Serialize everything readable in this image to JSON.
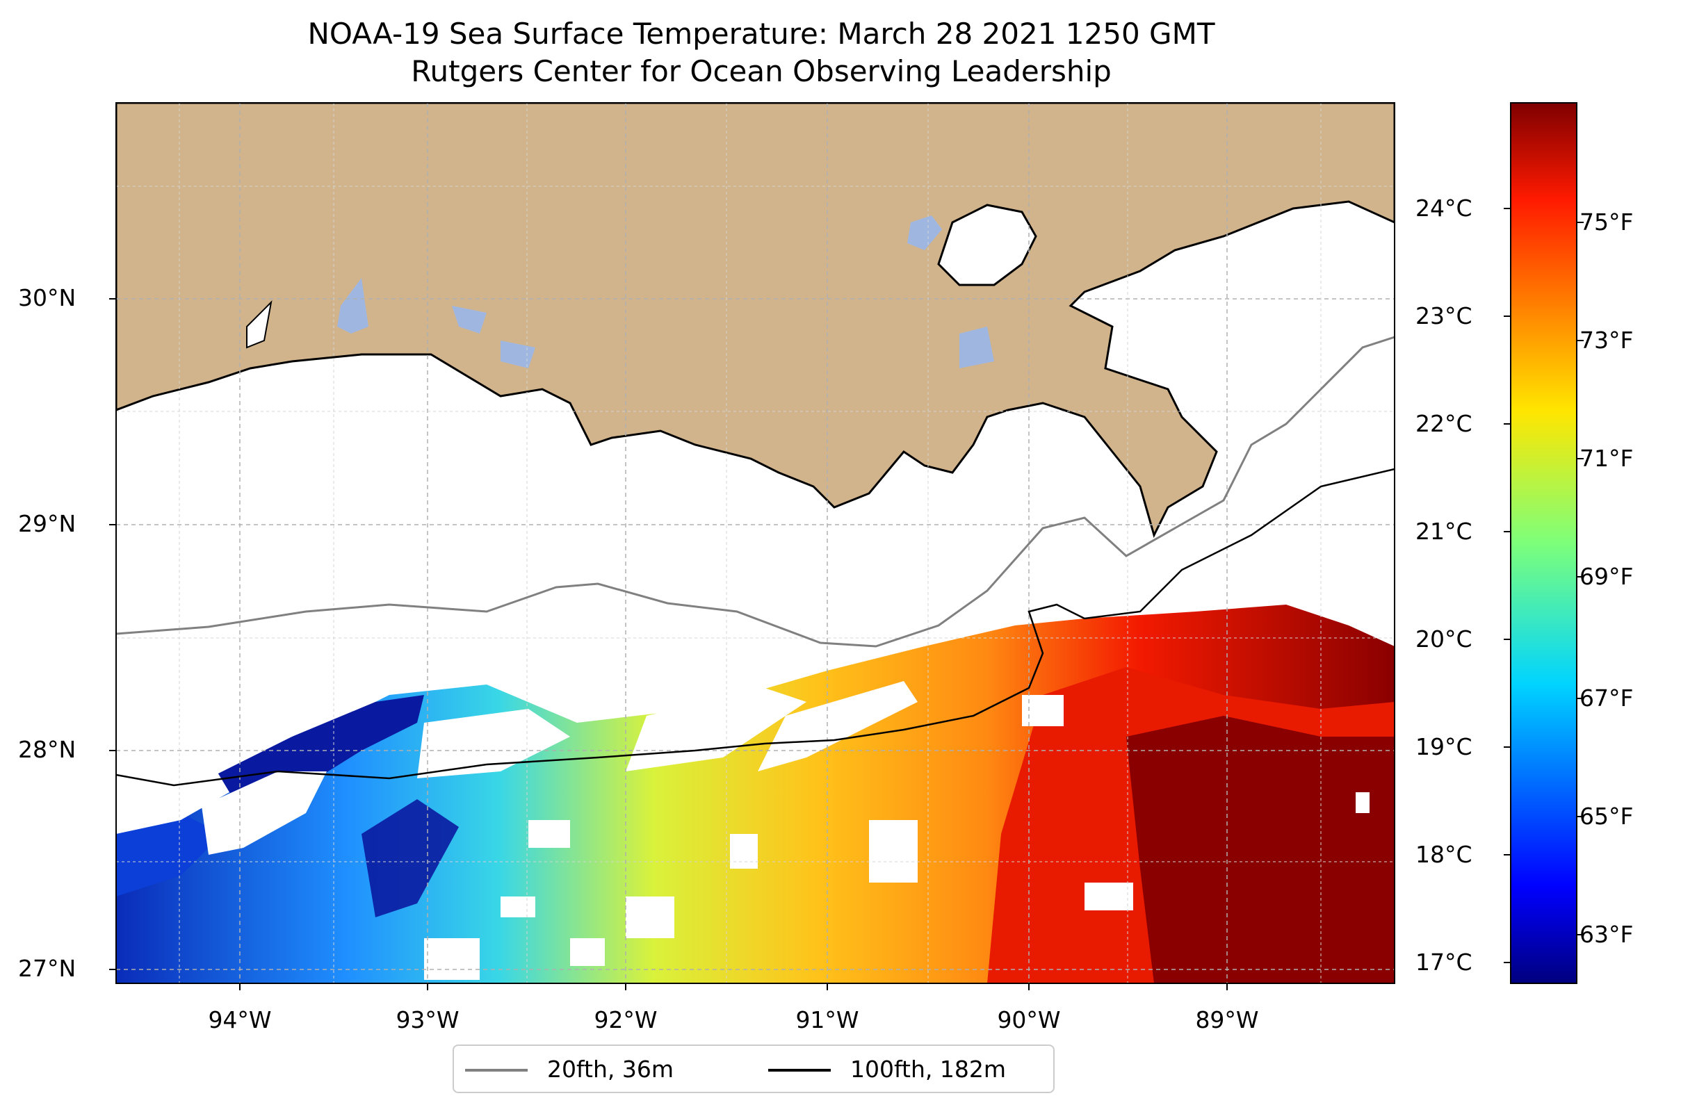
{
  "title": {
    "line1": "NOAA-19 Sea Surface Temperature: March 28 2021 1250 GMT",
    "line2": "Rutgers Center for Ocean Observing Leadership"
  },
  "map": {
    "lat_labels": [
      "30°N",
      "29°N",
      "28°N",
      "27°N"
    ],
    "lon_labels": [
      "94°W",
      "93°W",
      "92°W",
      "91°W",
      "90°W",
      "89°W"
    ],
    "colors": {
      "land": "#d2b48c",
      "lake": "#9fb7e0",
      "coastline": "#000000",
      "isobath_20fth": "#808080",
      "isobath_100fth": "#000000"
    },
    "sst_colormap": "jet",
    "gridlines": true
  },
  "colorbar": {
    "celsius_labels": [
      "24°C",
      "23°C",
      "22°C",
      "21°C",
      "20°C",
      "19°C",
      "18°C",
      "17°C"
    ],
    "fahrenheit_labels": [
      "75°F",
      "73°F",
      "71°F",
      "69°F",
      "67°F",
      "65°F",
      "63°F"
    ],
    "colormap": "jet"
  },
  "legend": {
    "items": [
      {
        "label": "20fth, 36m",
        "color": "#808080"
      },
      {
        "label": "100fth, 182m",
        "color": "#000000"
      }
    ]
  }
}
